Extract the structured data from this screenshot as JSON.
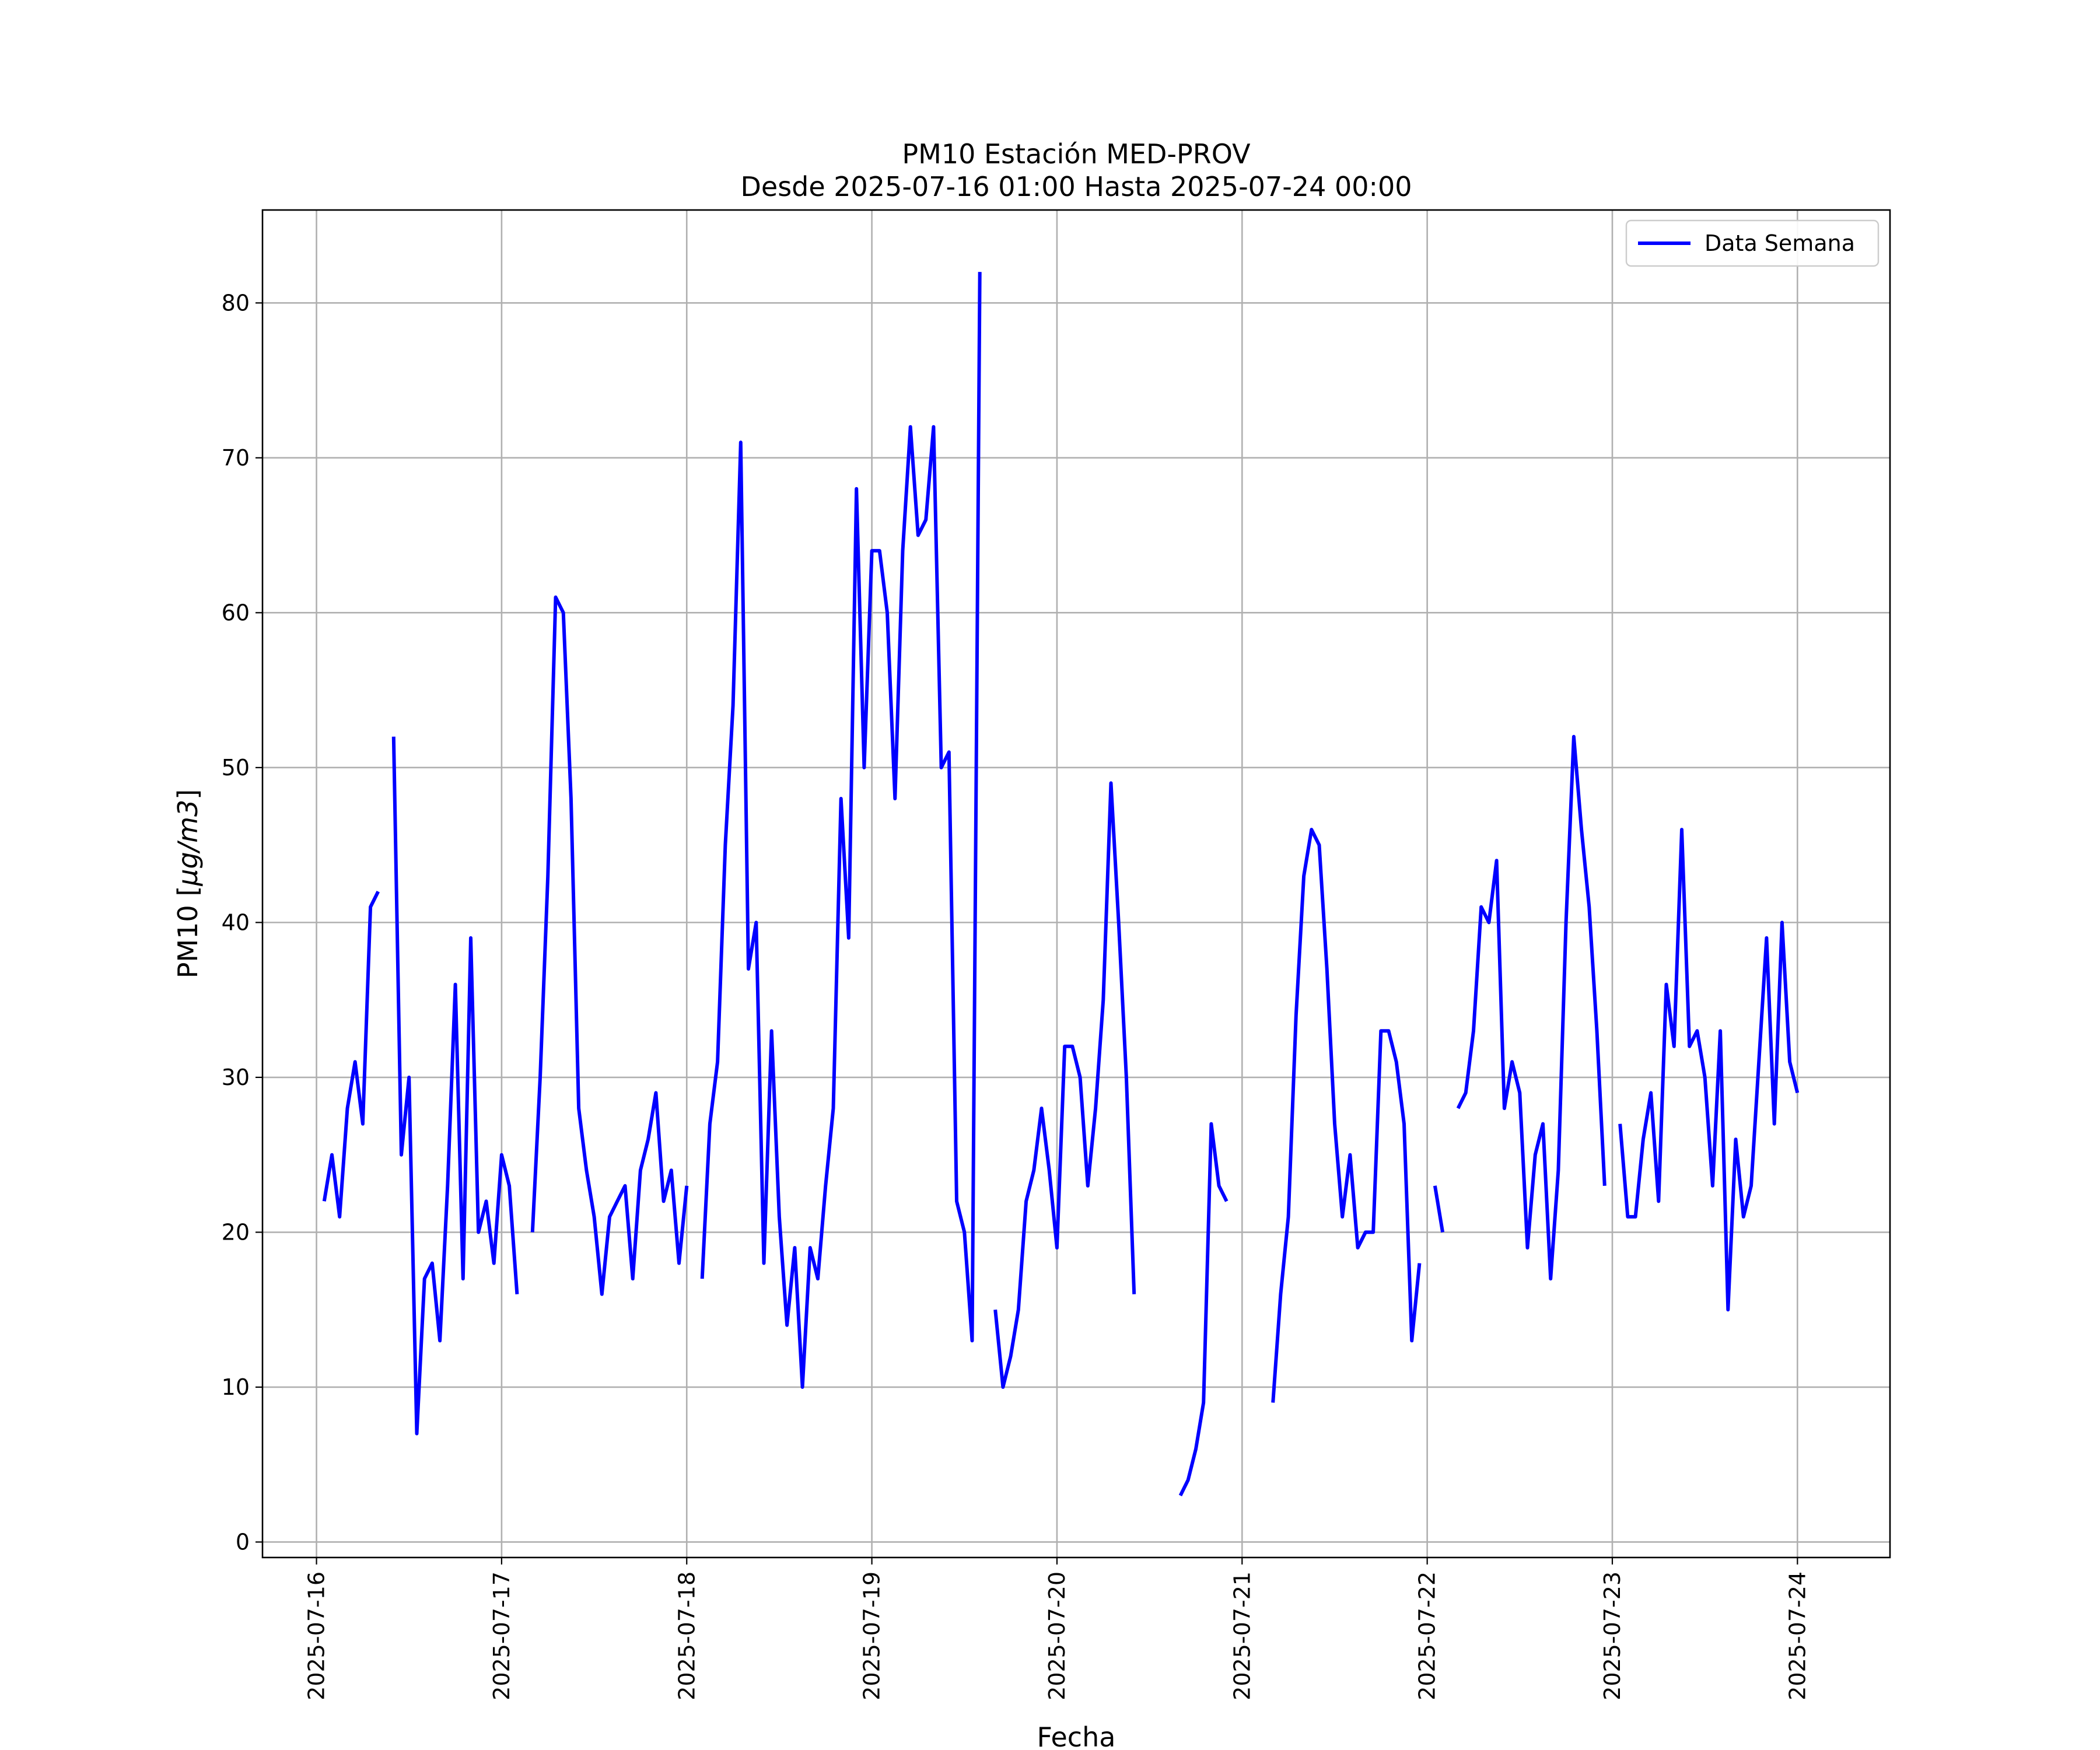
{
  "chart_data": {
    "type": "line",
    "title": "PM10 Estación MED-PROV",
    "subtitle": "Desde 2025-07-16 01:00 Hasta 2025-07-24 00:00",
    "xlabel": "Fecha",
    "ylabel_main": "PM10 [",
    "ylabel_unit": "μg/m3",
    "ylabel_end": "]",
    "xlim": [
      "2025-07-15T17:00",
      "2025-07-24T12:00"
    ],
    "ylim": [
      -1,
      86
    ],
    "x_ticks": [
      "2025-07-16",
      "2025-07-17",
      "2025-07-18",
      "2025-07-19",
      "2025-07-20",
      "2025-07-21",
      "2025-07-22",
      "2025-07-23",
      "2025-07-24"
    ],
    "y_ticks": [
      0,
      10,
      20,
      30,
      40,
      50,
      60,
      70,
      80
    ],
    "grid": true,
    "legend_position": "top-right",
    "color": "#0000ff",
    "series": [
      {
        "name": "Data Semana",
        "points": [
          [
            "2025-07-16T01:00",
            22
          ],
          [
            "2025-07-16T02:00",
            25
          ],
          [
            "2025-07-16T03:00",
            21
          ],
          [
            "2025-07-16T04:00",
            28
          ],
          [
            "2025-07-16T05:00",
            31
          ],
          [
            "2025-07-16T06:00",
            27
          ],
          [
            "2025-07-16T07:00",
            41
          ],
          [
            "2025-07-16T08:00",
            42
          ],
          [
            "2025-07-16T09:00",
            null
          ],
          [
            "2025-07-16T10:00",
            52
          ],
          [
            "2025-07-16T11:00",
            25
          ],
          [
            "2025-07-16T12:00",
            30
          ],
          [
            "2025-07-16T13:00",
            7
          ],
          [
            "2025-07-16T14:00",
            17
          ],
          [
            "2025-07-16T15:00",
            18
          ],
          [
            "2025-07-16T16:00",
            13
          ],
          [
            "2025-07-16T17:00",
            23
          ],
          [
            "2025-07-16T18:00",
            36
          ],
          [
            "2025-07-16T19:00",
            17
          ],
          [
            "2025-07-16T20:00",
            39
          ],
          [
            "2025-07-16T21:00",
            20
          ],
          [
            "2025-07-16T22:00",
            22
          ],
          [
            "2025-07-16T23:00",
            18
          ],
          [
            "2025-07-17T00:00",
            25
          ],
          [
            "2025-07-17T01:00",
            23
          ],
          [
            "2025-07-17T02:00",
            16
          ],
          [
            "2025-07-17T03:00",
            null
          ],
          [
            "2025-07-17T04:00",
            20
          ],
          [
            "2025-07-17T05:00",
            30
          ],
          [
            "2025-07-17T06:00",
            43
          ],
          [
            "2025-07-17T07:00",
            61
          ],
          [
            "2025-07-17T08:00",
            60
          ],
          [
            "2025-07-17T09:00",
            48
          ],
          [
            "2025-07-17T10:00",
            28
          ],
          [
            "2025-07-17T11:00",
            24
          ],
          [
            "2025-07-17T12:00",
            21
          ],
          [
            "2025-07-17T13:00",
            16
          ],
          [
            "2025-07-17T14:00",
            21
          ],
          [
            "2025-07-17T15:00",
            22
          ],
          [
            "2025-07-17T16:00",
            23
          ],
          [
            "2025-07-17T17:00",
            17
          ],
          [
            "2025-07-17T18:00",
            24
          ],
          [
            "2025-07-17T19:00",
            26
          ],
          [
            "2025-07-17T20:00",
            29
          ],
          [
            "2025-07-17T21:00",
            22
          ],
          [
            "2025-07-17T22:00",
            24
          ],
          [
            "2025-07-17T23:00",
            18
          ],
          [
            "2025-07-18T00:00",
            23
          ],
          [
            "2025-07-18T01:00",
            null
          ],
          [
            "2025-07-18T02:00",
            17
          ],
          [
            "2025-07-18T03:00",
            27
          ],
          [
            "2025-07-18T04:00",
            31
          ],
          [
            "2025-07-18T05:00",
            45
          ],
          [
            "2025-07-18T06:00",
            54
          ],
          [
            "2025-07-18T07:00",
            71
          ],
          [
            "2025-07-18T08:00",
            37
          ],
          [
            "2025-07-18T09:00",
            40
          ],
          [
            "2025-07-18T10:00",
            18
          ],
          [
            "2025-07-18T11:00",
            33
          ],
          [
            "2025-07-18T12:00",
            21
          ],
          [
            "2025-07-18T13:00",
            14
          ],
          [
            "2025-07-18T14:00",
            19
          ],
          [
            "2025-07-18T15:00",
            10
          ],
          [
            "2025-07-18T16:00",
            19
          ],
          [
            "2025-07-18T17:00",
            17
          ],
          [
            "2025-07-18T18:00",
            23
          ],
          [
            "2025-07-18T19:00",
            28
          ],
          [
            "2025-07-18T20:00",
            48
          ],
          [
            "2025-07-18T21:00",
            39
          ],
          [
            "2025-07-18T22:00",
            68
          ],
          [
            "2025-07-18T23:00",
            50
          ],
          [
            "2025-07-19T00:00",
            64
          ],
          [
            "2025-07-19T01:00",
            64
          ],
          [
            "2025-07-19T02:00",
            60
          ],
          [
            "2025-07-19T03:00",
            48
          ],
          [
            "2025-07-19T04:00",
            64
          ],
          [
            "2025-07-19T05:00",
            72
          ],
          [
            "2025-07-19T06:00",
            65
          ],
          [
            "2025-07-19T07:00",
            66
          ],
          [
            "2025-07-19T08:00",
            72
          ],
          [
            "2025-07-19T09:00",
            50
          ],
          [
            "2025-07-19T10:00",
            51
          ],
          [
            "2025-07-19T11:00",
            22
          ],
          [
            "2025-07-19T12:00",
            20
          ],
          [
            "2025-07-19T13:00",
            13
          ],
          [
            "2025-07-19T14:00",
            82
          ],
          [
            "2025-07-19T15:00",
            null
          ],
          [
            "2025-07-19T16:00",
            15
          ],
          [
            "2025-07-19T17:00",
            10
          ],
          [
            "2025-07-19T18:00",
            12
          ],
          [
            "2025-07-19T19:00",
            15
          ],
          [
            "2025-07-19T20:00",
            22
          ],
          [
            "2025-07-19T21:00",
            24
          ],
          [
            "2025-07-19T22:00",
            28
          ],
          [
            "2025-07-19T23:00",
            24
          ],
          [
            "2025-07-20T00:00",
            19
          ],
          [
            "2025-07-20T01:00",
            32
          ],
          [
            "2025-07-20T02:00",
            32
          ],
          [
            "2025-07-20T03:00",
            30
          ],
          [
            "2025-07-20T04:00",
            23
          ],
          [
            "2025-07-20T05:00",
            28
          ],
          [
            "2025-07-20T06:00",
            35
          ],
          [
            "2025-07-20T07:00",
            49
          ],
          [
            "2025-07-20T08:00",
            40
          ],
          [
            "2025-07-20T09:00",
            30
          ],
          [
            "2025-07-20T10:00",
            16
          ],
          [
            "2025-07-20T11:00",
            null
          ],
          [
            "2025-07-20T16:00",
            3
          ],
          [
            "2025-07-20T17:00",
            4
          ],
          [
            "2025-07-20T18:00",
            6
          ],
          [
            "2025-07-20T19:00",
            9
          ],
          [
            "2025-07-20T20:00",
            27
          ],
          [
            "2025-07-20T21:00",
            23
          ],
          [
            "2025-07-20T22:00",
            22
          ],
          [
            "2025-07-20T23:00",
            null
          ],
          [
            "2025-07-21T04:00",
            9
          ],
          [
            "2025-07-21T05:00",
            16
          ],
          [
            "2025-07-21T06:00",
            21
          ],
          [
            "2025-07-21T07:00",
            34
          ],
          [
            "2025-07-21T08:00",
            43
          ],
          [
            "2025-07-21T09:00",
            46
          ],
          [
            "2025-07-21T10:00",
            45
          ],
          [
            "2025-07-21T11:00",
            37
          ],
          [
            "2025-07-21T12:00",
            27
          ],
          [
            "2025-07-21T13:00",
            21
          ],
          [
            "2025-07-21T14:00",
            25
          ],
          [
            "2025-07-21T15:00",
            19
          ],
          [
            "2025-07-21T16:00",
            20
          ],
          [
            "2025-07-21T17:00",
            20
          ],
          [
            "2025-07-21T18:00",
            33
          ],
          [
            "2025-07-21T19:00",
            33
          ],
          [
            "2025-07-21T20:00",
            31
          ],
          [
            "2025-07-21T21:00",
            27
          ],
          [
            "2025-07-21T22:00",
            13
          ],
          [
            "2025-07-21T23:00",
            18
          ],
          [
            "2025-07-22T00:00",
            null
          ],
          [
            "2025-07-22T01:00",
            23
          ],
          [
            "2025-07-22T02:00",
            20
          ],
          [
            "2025-07-22T03:00",
            null
          ],
          [
            "2025-07-22T04:00",
            28
          ],
          [
            "2025-07-22T05:00",
            29
          ],
          [
            "2025-07-22T06:00",
            33
          ],
          [
            "2025-07-22T07:00",
            41
          ],
          [
            "2025-07-22T08:00",
            40
          ],
          [
            "2025-07-22T09:00",
            44
          ],
          [
            "2025-07-22T10:00",
            28
          ],
          [
            "2025-07-22T11:00",
            31
          ],
          [
            "2025-07-22T12:00",
            29
          ],
          [
            "2025-07-22T13:00",
            19
          ],
          [
            "2025-07-22T14:00",
            25
          ],
          [
            "2025-07-22T15:00",
            27
          ],
          [
            "2025-07-22T16:00",
            17
          ],
          [
            "2025-07-22T17:00",
            24
          ],
          [
            "2025-07-22T18:00",
            40
          ],
          [
            "2025-07-22T19:00",
            52
          ],
          [
            "2025-07-22T20:00",
            46
          ],
          [
            "2025-07-22T21:00",
            41
          ],
          [
            "2025-07-22T22:00",
            33
          ],
          [
            "2025-07-22T23:00",
            23
          ],
          [
            "2025-07-23T00:00",
            null
          ],
          [
            "2025-07-23T01:00",
            27
          ],
          [
            "2025-07-23T02:00",
            21
          ],
          [
            "2025-07-23T03:00",
            21
          ],
          [
            "2025-07-23T04:00",
            26
          ],
          [
            "2025-07-23T05:00",
            29
          ],
          [
            "2025-07-23T06:00",
            22
          ],
          [
            "2025-07-23T07:00",
            36
          ],
          [
            "2025-07-23T08:00",
            32
          ],
          [
            "2025-07-23T09:00",
            46
          ],
          [
            "2025-07-23T10:00",
            32
          ],
          [
            "2025-07-23T11:00",
            33
          ],
          [
            "2025-07-23T12:00",
            30
          ],
          [
            "2025-07-23T13:00",
            23
          ],
          [
            "2025-07-23T14:00",
            33
          ],
          [
            "2025-07-23T15:00",
            15
          ],
          [
            "2025-07-23T16:00",
            26
          ],
          [
            "2025-07-23T17:00",
            21
          ],
          [
            "2025-07-23T18:00",
            23
          ],
          [
            "2025-07-23T19:00",
            31
          ],
          [
            "2025-07-23T20:00",
            39
          ],
          [
            "2025-07-23T21:00",
            27
          ],
          [
            "2025-07-23T22:00",
            40
          ],
          [
            "2025-07-23T23:00",
            31
          ],
          [
            "2025-07-24T00:00",
            29
          ]
        ]
      }
    ]
  }
}
